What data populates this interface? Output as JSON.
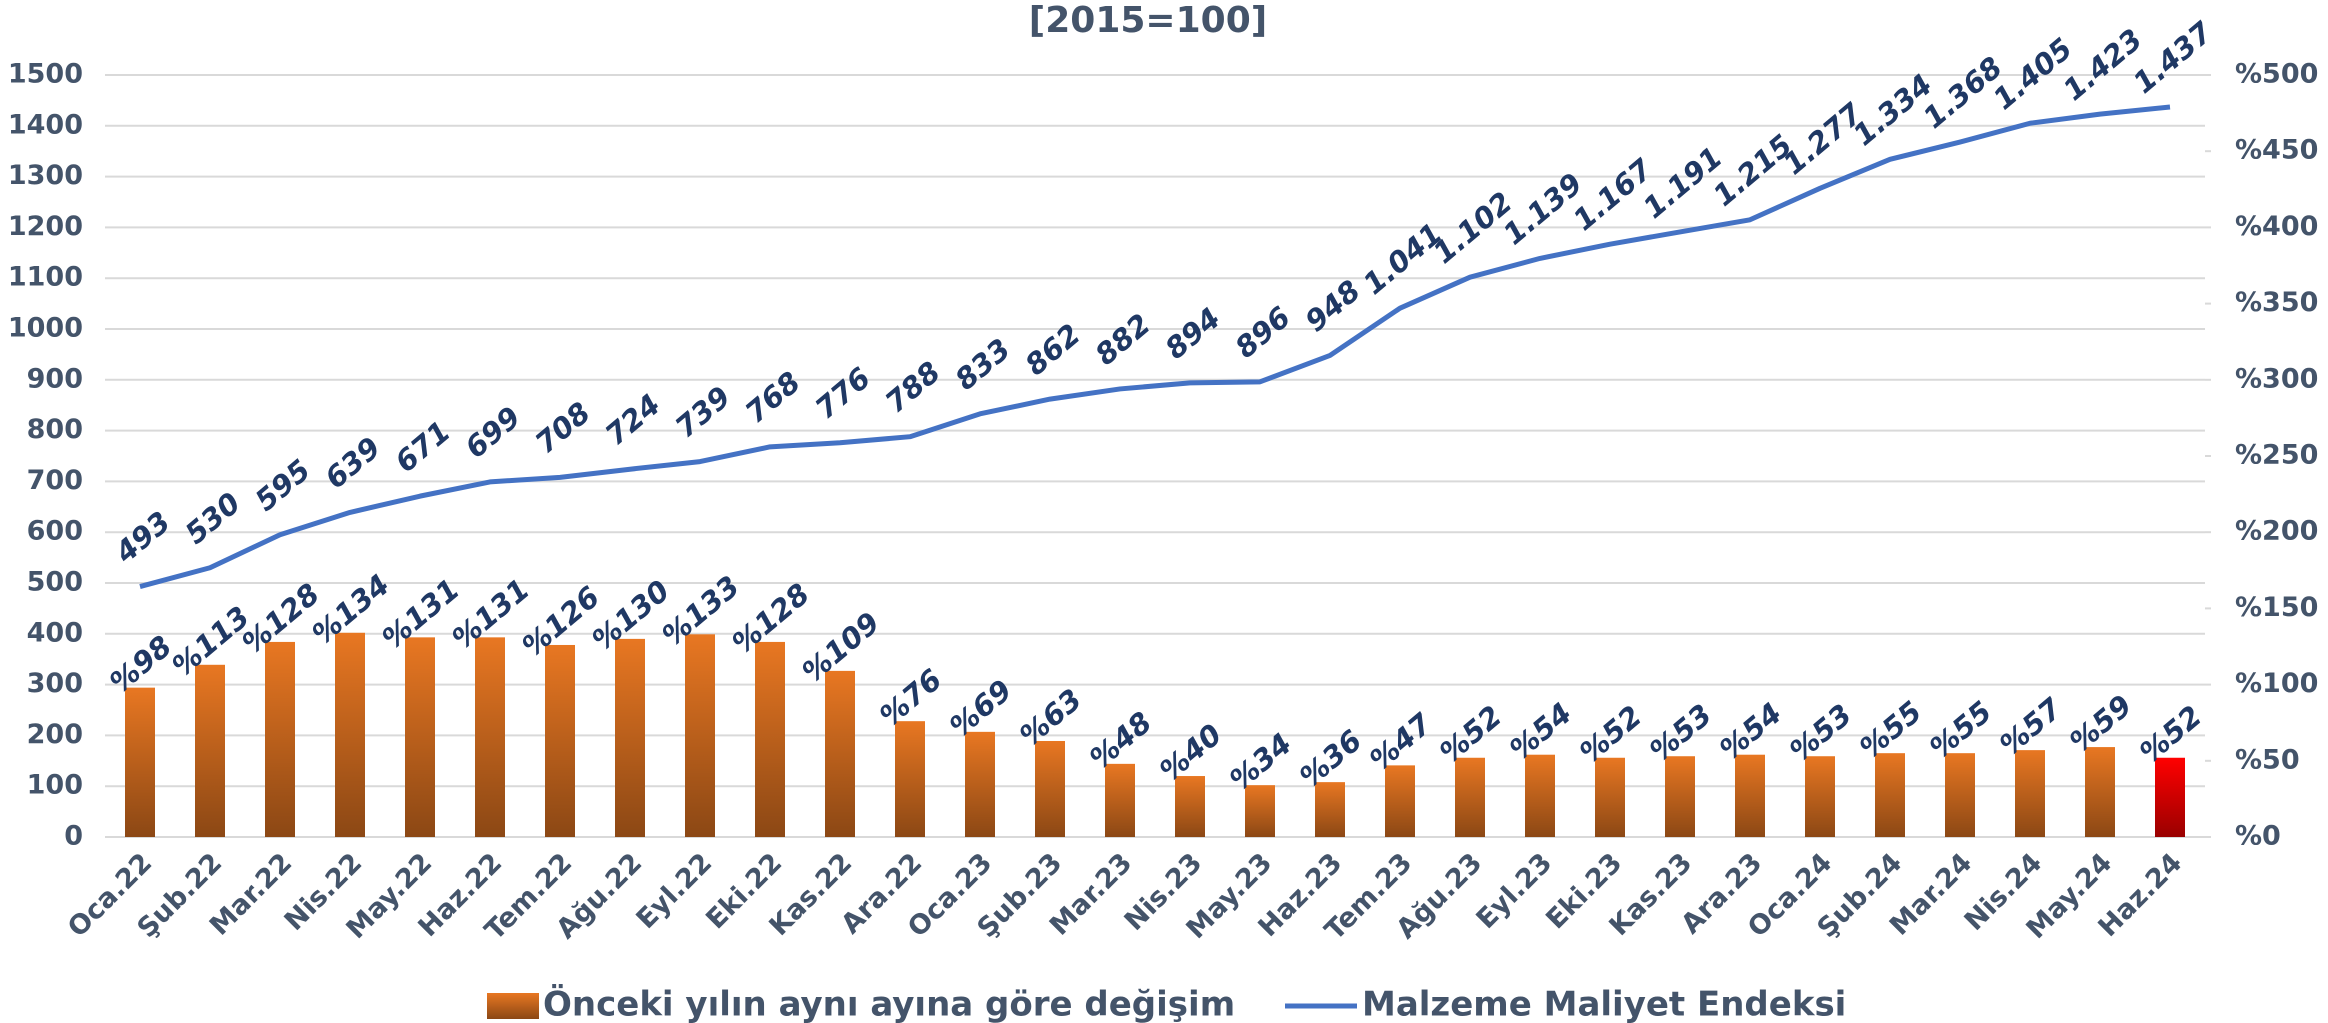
{
  "chart_data": {
    "type": "bar_line",
    "title": "[2015=100]",
    "categories": [
      "Oca.22",
      "Şub.22",
      "Mar.22",
      "Nis.22",
      "May.22",
      "Haz.22",
      "Tem.22",
      "Ağu.22",
      "Eyl.22",
      "Eki.22",
      "Kas.22",
      "Ara.22",
      "Oca.23",
      "Şub.23",
      "Mar.23",
      "Nis.23",
      "May.23",
      "Haz.23",
      "Tem.23",
      "Ağu.23",
      "Eyl.23",
      "Eki.23",
      "Kas.23",
      "Ara.23",
      "Oca.24",
      "Şub.24",
      "Mar.24",
      "Nis.24",
      "May.24",
      "Haz.24"
    ],
    "series": [
      {
        "name": "Önceki yılın aynı ayına göre değişim",
        "type": "bar",
        "axis": "y2",
        "color": "#e87722",
        "colors": [
          "#e87722",
          "#e87722",
          "#e87722",
          "#e87722",
          "#e87722",
          "#e87722",
          "#e87722",
          "#e87722",
          "#e87722",
          "#e87722",
          "#e87722",
          "#e87722",
          "#e87722",
          "#e87722",
          "#e87722",
          "#e87722",
          "#e87722",
          "#e87722",
          "#e87722",
          "#e87722",
          "#e87722",
          "#e87722",
          "#e87722",
          "#e87722",
          "#e87722",
          "#e87722",
          "#e87722",
          "#e87722",
          "#e87722",
          "#ff0000"
        ],
        "values": [
          98,
          113,
          128,
          134,
          131,
          131,
          126,
          130,
          133,
          128,
          109,
          76,
          69,
          63,
          48,
          40,
          34,
          36,
          47,
          52,
          54,
          52,
          53,
          54,
          53,
          55,
          55,
          57,
          59,
          52
        ],
        "value_labels": [
          "%98",
          "%113",
          "%128",
          "%134",
          "%131",
          "%131",
          "%126",
          "%130",
          "%133",
          "%128",
          "%109",
          "%76",
          "%69",
          "%63",
          "%48",
          "%40",
          "%34",
          "%36",
          "%47",
          "%52",
          "%54",
          "%52",
          "%53",
          "%54",
          "%53",
          "%55",
          "%55",
          "%57",
          "%59",
          "%52"
        ]
      },
      {
        "name": "Malzeme Maliyet Endeksi",
        "type": "line",
        "color": "#4472c4",
        "values": [
          493,
          530,
          595,
          639,
          671,
          699,
          708,
          724,
          739,
          768,
          776,
          788,
          833,
          862,
          882,
          894,
          896,
          948,
          1041,
          1102,
          1139,
          1167,
          1191,
          1215,
          1277,
          1334,
          1368,
          1405,
          1423,
          1437
        ],
        "value_labels": [
          "493",
          "530",
          "595",
          "639",
          "671",
          "699",
          "708",
          "724",
          "739",
          "768",
          "776",
          "788",
          "833",
          "862",
          "882",
          "894",
          "896",
          "948",
          "1.041",
          "1.102",
          "1.139",
          "1.167",
          "1.191",
          "1.215",
          "1.277",
          "1.334",
          "1.368",
          "1.405",
          "1.423",
          "1.437"
        ]
      }
    ],
    "ylim": [
      0,
      1500
    ],
    "yticks": [
      0,
      100,
      200,
      300,
      400,
      500,
      600,
      700,
      800,
      900,
      1000,
      1100,
      1200,
      1300,
      1400,
      1500
    ],
    "y2lim": [
      0,
      500
    ],
    "y2ticks": [
      {
        "value": 0,
        "label": "%0"
      },
      {
        "value": 50,
        "label": "%50"
      },
      {
        "value": 100,
        "label": "%100"
      },
      {
        "value": 150,
        "label": "%150"
      },
      {
        "value": 200,
        "label": "%200"
      },
      {
        "value": 250,
        "label": "%250"
      },
      {
        "value": 300,
        "label": "%300"
      },
      {
        "value": 350,
        "label": "%350"
      },
      {
        "value": 400,
        "label": "%400"
      },
      {
        "value": 450,
        "label": "%450"
      },
      {
        "value": 500,
        "label": "%500"
      }
    ],
    "grid": true,
    "legend": "bottom"
  }
}
